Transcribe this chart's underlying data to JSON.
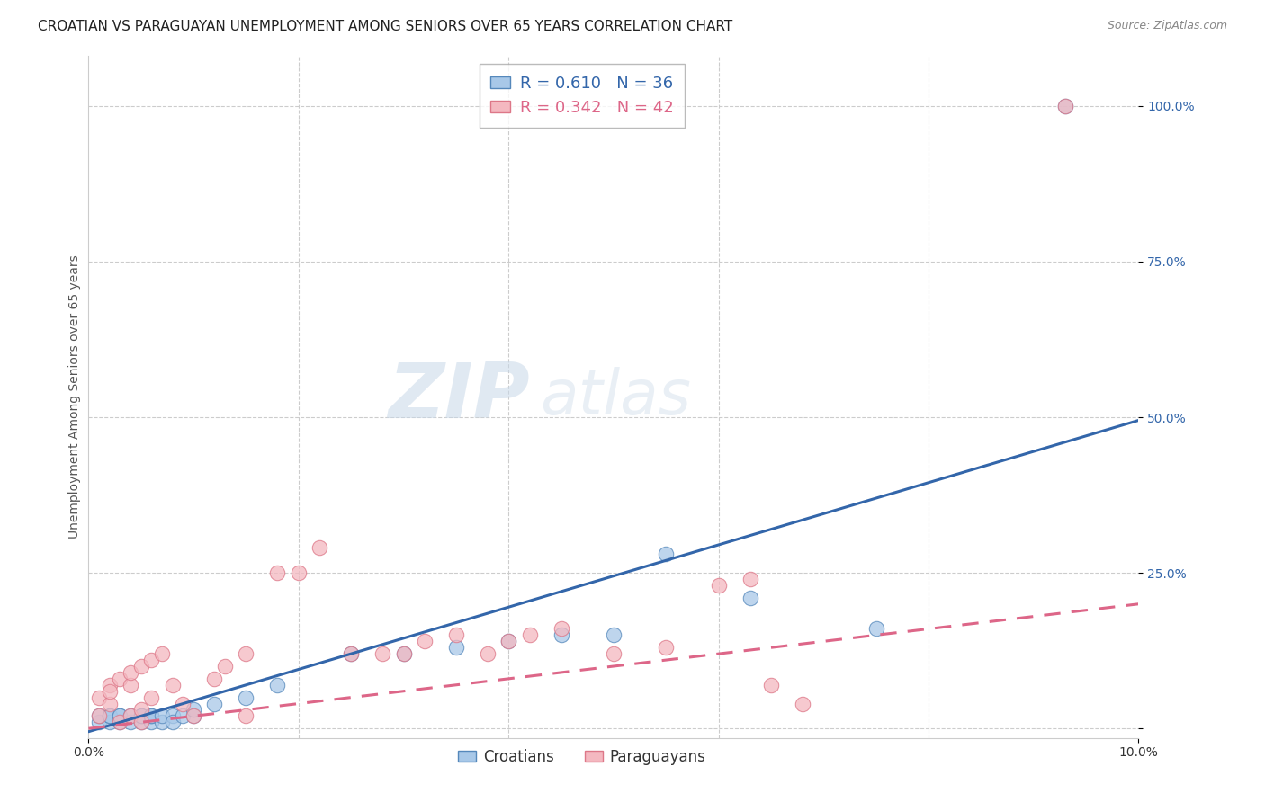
{
  "title": "CROATIAN VS PARAGUAYAN UNEMPLOYMENT AMONG SENIORS OVER 65 YEARS CORRELATION CHART",
  "source": "Source: ZipAtlas.com",
  "ylabel": "Unemployment Among Seniors over 65 years",
  "ytick_labels": [
    "",
    "25.0%",
    "50.0%",
    "75.0%",
    "100.0%"
  ],
  "ytick_values": [
    0,
    0.25,
    0.5,
    0.75,
    1.0
  ],
  "xmin": 0.0,
  "xmax": 0.1,
  "ymin": -0.015,
  "ymax": 1.08,
  "croatian_R": 0.61,
  "croatian_N": 36,
  "paraguayan_R": 0.342,
  "paraguayan_N": 42,
  "croatian_color": "#a8c8e8",
  "paraguayan_color": "#f4b8c0",
  "croatian_edge_color": "#5588bb",
  "paraguayan_edge_color": "#dd7788",
  "croatian_line_color": "#3366aa",
  "paraguayan_line_color": "#dd6688",
  "background_color": "#ffffff",
  "croatian_line_slope": 5.0,
  "croatian_line_intercept": -0.005,
  "paraguayan_line_slope": 2.0,
  "paraguayan_line_intercept": 0.0,
  "croatian_scatter_x": [
    0.001,
    0.001,
    0.002,
    0.002,
    0.002,
    0.003,
    0.003,
    0.003,
    0.004,
    0.004,
    0.005,
    0.005,
    0.005,
    0.006,
    0.006,
    0.006,
    0.007,
    0.007,
    0.008,
    0.008,
    0.009,
    0.01,
    0.01,
    0.012,
    0.015,
    0.018,
    0.025,
    0.03,
    0.035,
    0.04,
    0.045,
    0.05,
    0.055,
    0.063,
    0.075,
    0.093
  ],
  "croatian_scatter_y": [
    0.01,
    0.02,
    0.01,
    0.02,
    0.02,
    0.01,
    0.02,
    0.02,
    0.01,
    0.02,
    0.01,
    0.02,
    0.02,
    0.01,
    0.02,
    0.02,
    0.01,
    0.02,
    0.02,
    0.01,
    0.02,
    0.02,
    0.03,
    0.04,
    0.05,
    0.07,
    0.12,
    0.12,
    0.13,
    0.14,
    0.15,
    0.15,
    0.28,
    0.21,
    0.16,
    1.0
  ],
  "paraguayan_scatter_x": [
    0.001,
    0.001,
    0.002,
    0.002,
    0.002,
    0.003,
    0.003,
    0.004,
    0.004,
    0.004,
    0.005,
    0.005,
    0.005,
    0.006,
    0.006,
    0.007,
    0.008,
    0.009,
    0.01,
    0.012,
    0.013,
    0.015,
    0.015,
    0.018,
    0.02,
    0.022,
    0.025,
    0.028,
    0.03,
    0.032,
    0.035,
    0.038,
    0.04,
    0.042,
    0.045,
    0.05,
    0.055,
    0.06,
    0.063,
    0.065,
    0.068,
    0.093
  ],
  "paraguayan_scatter_y": [
    0.02,
    0.05,
    0.04,
    0.07,
    0.06,
    0.01,
    0.08,
    0.02,
    0.07,
    0.09,
    0.01,
    0.03,
    0.1,
    0.05,
    0.11,
    0.12,
    0.07,
    0.04,
    0.02,
    0.08,
    0.1,
    0.02,
    0.12,
    0.25,
    0.25,
    0.29,
    0.12,
    0.12,
    0.12,
    0.14,
    0.15,
    0.12,
    0.14,
    0.15,
    0.16,
    0.12,
    0.13,
    0.23,
    0.24,
    0.07,
    0.04,
    1.0
  ],
  "legend_entries": [
    "Croatians",
    "Paraguayans"
  ],
  "title_fontsize": 11,
  "axis_label_fontsize": 10,
  "tick_fontsize": 10,
  "source_fontsize": 9
}
